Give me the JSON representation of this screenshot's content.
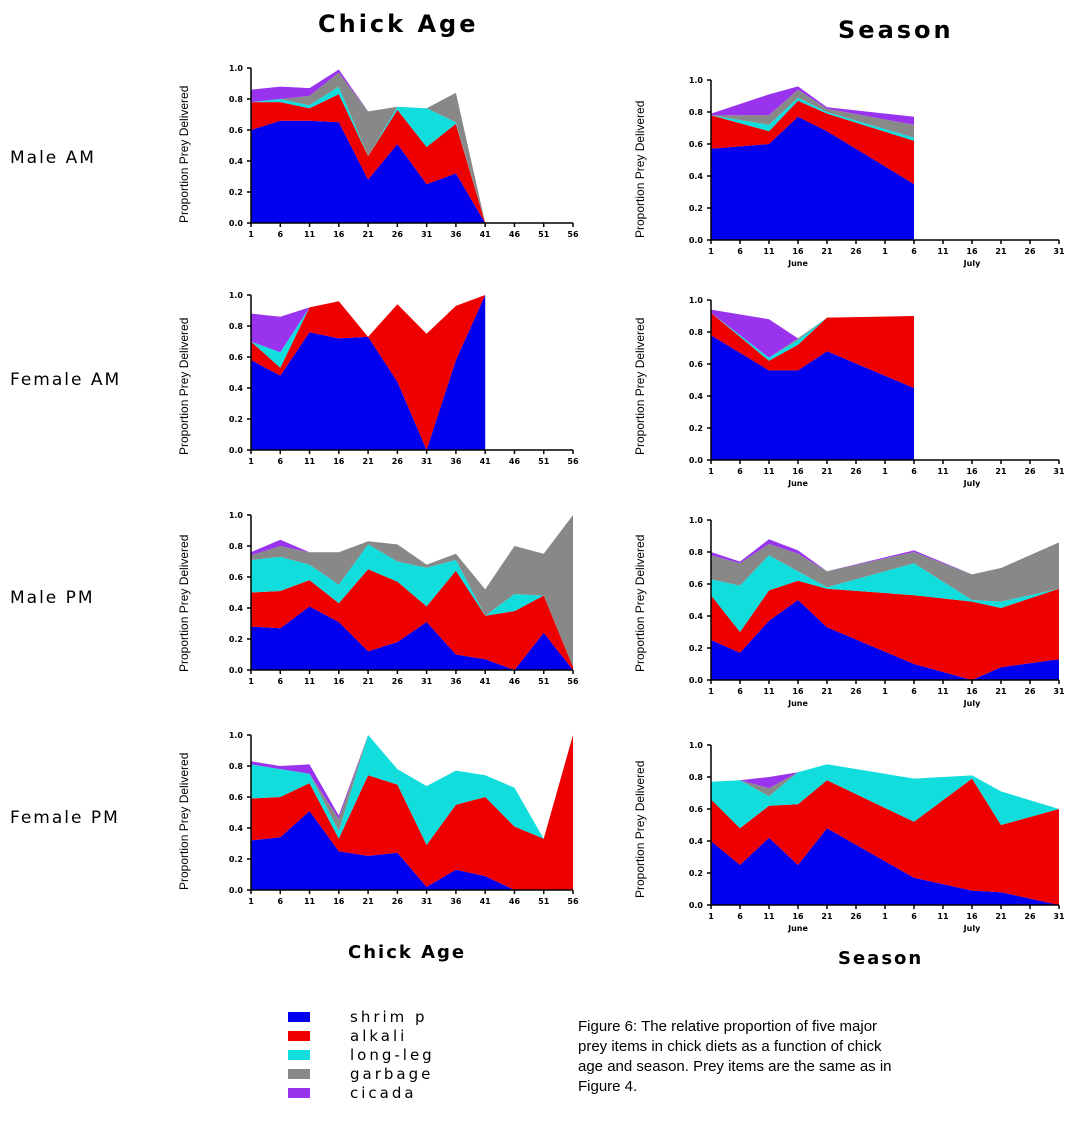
{
  "titles": {
    "left_top": "Chick Age",
    "right_top": "Season",
    "left_bottom": "Chick Age",
    "right_bottom": "Season"
  },
  "row_labels": [
    "Male AM",
    "Female AM",
    "Male PM",
    "Female PM"
  ],
  "ylabel": "Proportion Prey Delivered",
  "yticks": [
    "0.0",
    "0.2",
    "0.4",
    "0.6",
    "0.8",
    "1.0"
  ],
  "x_ticks": [
    "1",
    "6",
    "11",
    "16",
    "21",
    "26",
    "31",
    "36",
    "41",
    "46",
    "51",
    "56"
  ],
  "season_ticks": [
    "1",
    "6",
    "11",
    "16",
    "21",
    "26",
    "1",
    "6",
    "11",
    "16",
    "21",
    "26",
    "31"
  ],
  "season_months": [
    "June",
    "July"
  ],
  "colors": {
    "shrimp": "#0000ee",
    "alkali": "#ee0000",
    "long-leg": "#11dddd",
    "garbage": "#888888",
    "cicada": "#9933ee"
  },
  "legend": [
    "shrimp",
    "alkali",
    "long-leg",
    "garbage",
    "cicada"
  ],
  "legend_labels": [
    "shrim p",
    "alkali",
    "long-leg",
    "garbage",
    "cicada"
  ],
  "caption": "Figure 6: The relative proportion of five major prey items in chick diets as a function of chick age and season.  Prey items are the same as in Figure 4.",
  "chart_data": [
    {
      "type": "area",
      "panel": "Male AM - Chick Age",
      "x": [
        1,
        6,
        11,
        16,
        21,
        26,
        31,
        36,
        41
      ],
      "ylim": [
        0,
        1
      ],
      "xlim": [
        1,
        56
      ],
      "series": [
        {
          "name": "shrimp",
          "values": [
            0.6,
            0.66,
            0.66,
            0.65,
            0.28,
            0.51,
            0.25,
            0.32,
            0
          ]
        },
        {
          "name": "alkali",
          "values": [
            0.18,
            0.12,
            0.08,
            0.18,
            0.15,
            0.22,
            0.24,
            0.32,
            0
          ]
        },
        {
          "name": "long-leg",
          "values": [
            0,
            0.02,
            0.02,
            0.05,
            0,
            0.02,
            0.25,
            0.01,
            0
          ]
        },
        {
          "name": "garbage",
          "values": [
            0,
            0,
            0.06,
            0.09,
            0.29,
            0,
            0,
            0.19,
            0
          ]
        },
        {
          "name": "cicada",
          "values": [
            0.08,
            0.08,
            0.05,
            0.02,
            0,
            0,
            0,
            0,
            0
          ]
        }
      ]
    },
    {
      "type": "area",
      "panel": "Male AM - Season",
      "x": [
        1,
        11,
        16,
        21,
        36
      ],
      "ylim": [
        0,
        1
      ],
      "xlim": [
        1,
        61
      ],
      "series": [
        {
          "name": "shrimp",
          "values": [
            0.57,
            0.6,
            0.77,
            0.68,
            0.35
          ]
        },
        {
          "name": "alkali",
          "values": [
            0.21,
            0.08,
            0.1,
            0.11,
            0.27
          ]
        },
        {
          "name": "long-leg",
          "values": [
            0,
            0.04,
            0.02,
            0.01,
            0.02
          ]
        },
        {
          "name": "garbage",
          "values": [
            0,
            0.06,
            0.05,
            0.02,
            0.08
          ]
        },
        {
          "name": "cicada",
          "values": [
            0.01,
            0.13,
            0.02,
            0.01,
            0.05
          ]
        }
      ]
    },
    {
      "type": "area",
      "panel": "Female AM - Chick Age",
      "x": [
        1,
        6,
        11,
        16,
        21,
        26,
        31,
        36,
        41
      ],
      "ylim": [
        0,
        1
      ],
      "xlim": [
        1,
        56
      ],
      "series": [
        {
          "name": "shrimp",
          "values": [
            0.58,
            0.48,
            0.76,
            0.72,
            0.73,
            0.44,
            0.0,
            0.58,
            1.0
          ]
        },
        {
          "name": "alkali",
          "values": [
            0.12,
            0.05,
            0.16,
            0.24,
            0,
            0.5,
            0.75,
            0.35,
            0
          ]
        },
        {
          "name": "long-leg",
          "values": [
            0,
            0.1,
            0,
            0,
            0,
            0,
            0,
            0,
            0
          ]
        },
        {
          "name": "garbage",
          "values": [
            0,
            0,
            0,
            0,
            0,
            0,
            0,
            0,
            0
          ]
        },
        {
          "name": "cicada",
          "values": [
            0.18,
            0.23,
            0,
            0,
            0,
            0,
            0,
            0,
            0
          ]
        }
      ]
    },
    {
      "type": "area",
      "panel": "Female AM - Season",
      "x": [
        1,
        11,
        16,
        21,
        36
      ],
      "ylim": [
        0,
        1
      ],
      "xlim": [
        1,
        61
      ],
      "series": [
        {
          "name": "shrimp",
          "values": [
            0.78,
            0.56,
            0.56,
            0.68,
            0.45
          ]
        },
        {
          "name": "alkali",
          "values": [
            0.14,
            0.06,
            0.16,
            0.21,
            0.45
          ]
        },
        {
          "name": "long-leg",
          "values": [
            0,
            0.02,
            0.03,
            0,
            0
          ]
        },
        {
          "name": "garbage",
          "values": [
            0,
            0,
            0.01,
            0,
            0
          ]
        },
        {
          "name": "cicada",
          "values": [
            0.02,
            0.24,
            0,
            0,
            0
          ]
        }
      ]
    },
    {
      "type": "area",
      "panel": "Male PM - Chick Age",
      "x": [
        1,
        6,
        11,
        16,
        21,
        26,
        31,
        36,
        41,
        46,
        51,
        56
      ],
      "ylim": [
        0,
        1
      ],
      "xlim": [
        1,
        56
      ],
      "series": [
        {
          "name": "shrimp",
          "values": [
            0.28,
            0.27,
            0.41,
            0.31,
            0.12,
            0.18,
            0.31,
            0.1,
            0.07,
            0.0,
            0.24,
            0
          ]
        },
        {
          "name": "alkali",
          "values": [
            0.22,
            0.24,
            0.17,
            0.12,
            0.53,
            0.39,
            0.1,
            0.54,
            0.28,
            0.38,
            0.24,
            0.02
          ]
        },
        {
          "name": "long-leg",
          "values": [
            0.21,
            0.22,
            0.1,
            0.12,
            0.16,
            0.13,
            0.25,
            0.07,
            0,
            0.11,
            0,
            0
          ]
        },
        {
          "name": "garbage",
          "values": [
            0.03,
            0.07,
            0.08,
            0.21,
            0.02,
            0.11,
            0.02,
            0.04,
            0.17,
            0.31,
            0.27,
            0.98
          ]
        },
        {
          "name": "cicada",
          "values": [
            0.02,
            0.04,
            0,
            0,
            0,
            0,
            0,
            0,
            0,
            0,
            0,
            0
          ]
        }
      ]
    },
    {
      "type": "area",
      "panel": "Male PM - Season",
      "x": [
        1,
        6,
        11,
        16,
        21,
        36,
        46,
        51,
        61
      ],
      "ylim": [
        0,
        1
      ],
      "xlim": [
        1,
        61
      ],
      "series": [
        {
          "name": "shrimp",
          "values": [
            0.25,
            0.17,
            0.37,
            0.5,
            0.33,
            0.1,
            0.0,
            0.08,
            0.13
          ]
        },
        {
          "name": "alkali",
          "values": [
            0.28,
            0.13,
            0.19,
            0.12,
            0.24,
            0.43,
            0.49,
            0.37,
            0.44
          ]
        },
        {
          "name": "long-leg",
          "values": [
            0.1,
            0.29,
            0.22,
            0.06,
            0.01,
            0.2,
            0.01,
            0.04,
            0
          ]
        },
        {
          "name": "garbage",
          "values": [
            0.15,
            0.14,
            0.07,
            0.11,
            0.1,
            0.07,
            0.16,
            0.21,
            0.29
          ]
        },
        {
          "name": "cicada",
          "values": [
            0.02,
            0.01,
            0.03,
            0.02,
            0,
            0.01,
            0,
            0,
            0
          ]
        }
      ]
    },
    {
      "type": "area",
      "panel": "Female PM - Chick Age",
      "x": [
        1,
        6,
        11,
        16,
        21,
        26,
        31,
        36,
        41,
        46,
        51,
        56
      ],
      "ylim": [
        0,
        1
      ],
      "xlim": [
        1,
        56
      ],
      "series": [
        {
          "name": "shrimp",
          "values": [
            0.32,
            0.34,
            0.51,
            0.25,
            0.22,
            0.24,
            0.02,
            0.13,
            0.09,
            0.0,
            0.0,
            0
          ]
        },
        {
          "name": "alkali",
          "values": [
            0.27,
            0.26,
            0.18,
            0.08,
            0.52,
            0.44,
            0.27,
            0.42,
            0.51,
            0.41,
            0.33,
            1.0
          ]
        },
        {
          "name": "long-leg",
          "values": [
            0.22,
            0.18,
            0.06,
            0.05,
            0.26,
            0.1,
            0.38,
            0.22,
            0.14,
            0.25,
            0,
            0
          ]
        },
        {
          "name": "garbage",
          "values": [
            0,
            0,
            0,
            0.08,
            0,
            0,
            0,
            0,
            0,
            0,
            0,
            0
          ]
        },
        {
          "name": "cicada",
          "values": [
            0.02,
            0.02,
            0.06,
            0.02,
            0,
            0,
            0,
            0,
            0,
            0,
            0,
            0
          ]
        }
      ]
    },
    {
      "type": "area",
      "panel": "Female PM - Season",
      "x": [
        1,
        6,
        11,
        16,
        21,
        36,
        46,
        51,
        61
      ],
      "ylim": [
        0,
        1
      ],
      "xlim": [
        1,
        61
      ],
      "series": [
        {
          "name": "shrimp",
          "values": [
            0.4,
            0.25,
            0.42,
            0.25,
            0.48,
            0.17,
            0.09,
            0.08,
            0
          ]
        },
        {
          "name": "alkali",
          "values": [
            0.26,
            0.23,
            0.2,
            0.38,
            0.3,
            0.35,
            0.7,
            0.42,
            0.6
          ]
        },
        {
          "name": "long-leg",
          "values": [
            0.11,
            0.3,
            0.06,
            0.2,
            0.1,
            0.27,
            0.02,
            0.21,
            0
          ]
        },
        {
          "name": "garbage",
          "values": [
            0,
            0,
            0.05,
            0,
            0,
            0,
            0,
            0,
            0
          ]
        },
        {
          "name": "cicada",
          "values": [
            0,
            0,
            0.07,
            0,
            0,
            0,
            0,
            0,
            0
          ]
        }
      ]
    }
  ]
}
